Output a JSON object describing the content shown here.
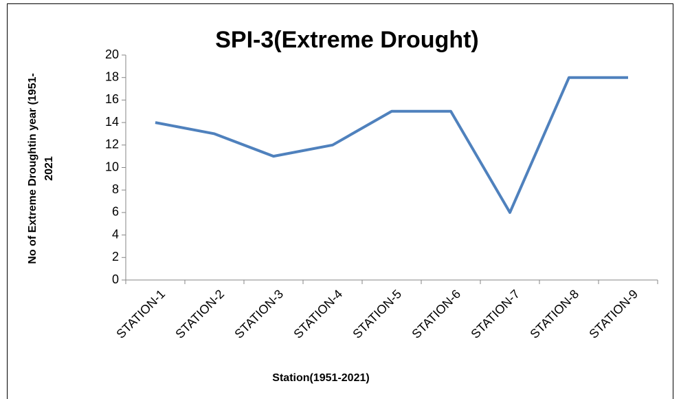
{
  "chart_data": {
    "type": "line",
    "title": "SPI-3(Extreme Drought)",
    "ylabel": [
      "No of Extreme Droughtin year (1951-",
      "2021"
    ],
    "xlabel": "Station(1951-2021)",
    "categories": [
      "STATION-1",
      "STATION-2",
      "STATION-3",
      "STATION-4",
      "STATION-5",
      "STATION-6",
      "STATION-7",
      "STATION-8",
      "STATION-9"
    ],
    "values": [
      14,
      13,
      11,
      12,
      15,
      15,
      6,
      18,
      18
    ],
    "color": "#4f81bd",
    "ylim": [
      0,
      20
    ],
    "yticks": [
      0,
      2,
      4,
      6,
      8,
      10,
      12,
      14,
      16,
      18,
      20
    ],
    "grid": false
  }
}
